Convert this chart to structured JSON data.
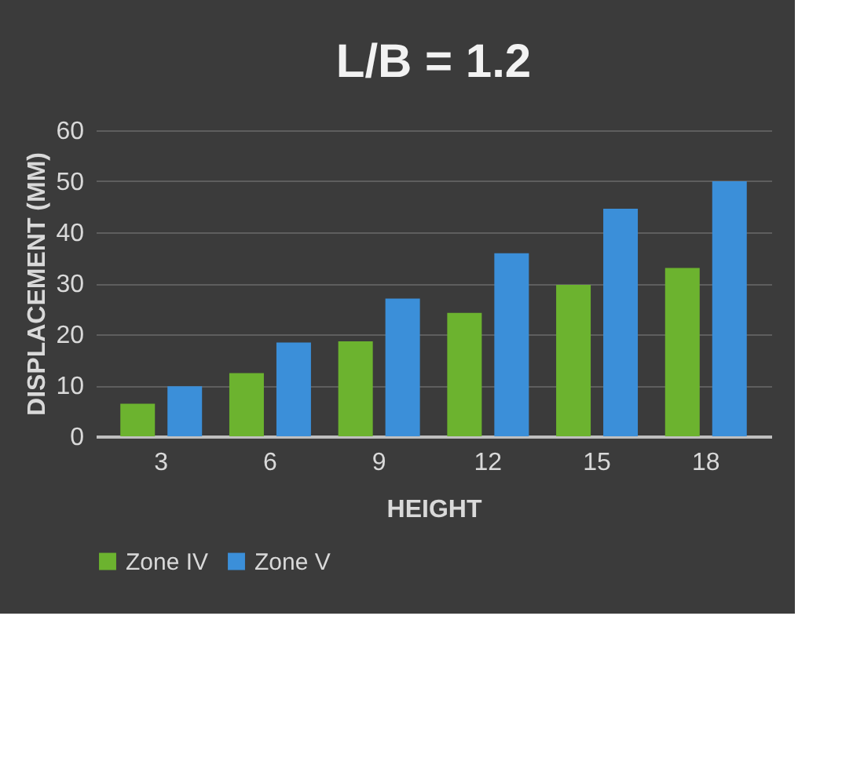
{
  "chart_data": {
    "type": "bar",
    "title": "L/B = 1.2",
    "xlabel": "HEIGHT",
    "ylabel": "DISPLACEMENT (MM)",
    "categories": [
      "3",
      "6",
      "9",
      "12",
      "15",
      "18"
    ],
    "series": [
      {
        "name": "Zone IV",
        "color": "#6cb32f",
        "values": [
          6.4,
          12.4,
          18.6,
          24.2,
          29.7,
          33
        ]
      },
      {
        "name": "Zone V",
        "color": "#3b8fd9",
        "values": [
          9.8,
          18.4,
          27,
          35.9,
          44.6,
          50
        ]
      }
    ],
    "ylim": [
      0,
      60
    ],
    "yticks": [
      0,
      10,
      20,
      30,
      40,
      50,
      60
    ],
    "grid": "y",
    "legend": "bottom"
  }
}
